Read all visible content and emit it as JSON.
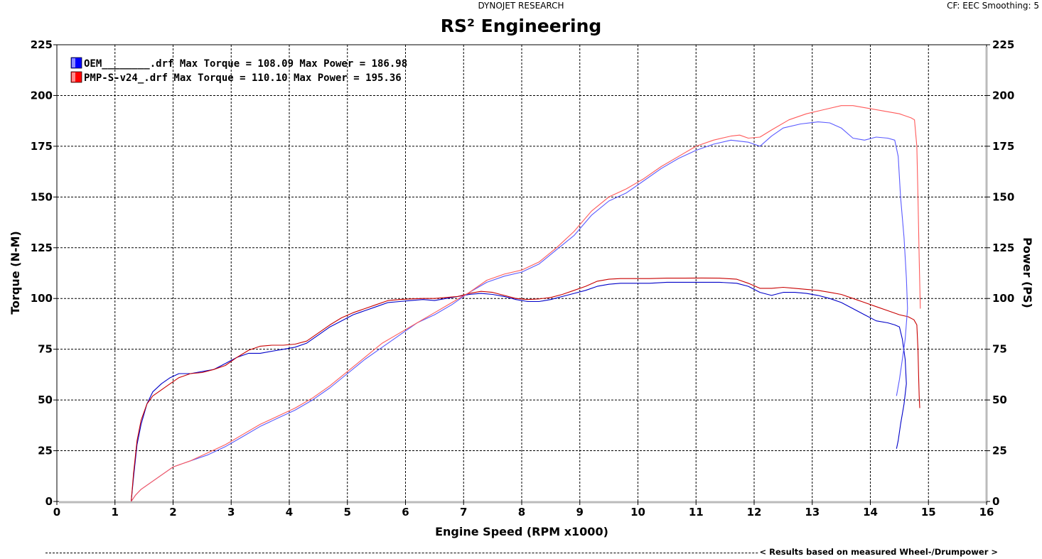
{
  "header": {
    "company": "DYNOJET RESEARCH",
    "settings": "CF: EEC  Smoothing: 5"
  },
  "footer_note": "< Results based on measured Wheel-/Drumpower >",
  "chart_data": {
    "type": "line",
    "title": "RS² Engineering",
    "xlabel": "Engine Speed (RPM x1000)",
    "ylabel_left": "Torque (N-M)",
    "ylabel_right": "Power (PS)",
    "xlim": [
      0,
      16
    ],
    "ylim_left": [
      0,
      225
    ],
    "ylim_right": [
      0,
      225
    ],
    "x_ticks": [
      "0",
      "1",
      "2",
      "3",
      "4",
      "5",
      "6",
      "7",
      "8",
      "9",
      "10",
      "11",
      "12",
      "13",
      "14",
      "15",
      "16"
    ],
    "y_ticks": [
      "0",
      "25",
      "50",
      "75",
      "100",
      "125",
      "150",
      "175",
      "200",
      "225"
    ],
    "grid": true,
    "legend_position": "top-left",
    "legend": [
      {
        "label": "OEM________.drf Max Torque = 108.09 Max Power = 186.98",
        "color": "#0000ff"
      },
      {
        "label": "PMP-S-v24_.drf Max Torque = 110.10 Max Power = 195.36",
        "color": "#ff0000"
      }
    ],
    "series": [
      {
        "name": "OEM________.drf Torque",
        "color": "#0000c8",
        "x": [
          1.28,
          1.32,
          1.38,
          1.45,
          1.55,
          1.65,
          1.8,
          1.95,
          2.1,
          2.3,
          2.5,
          2.7,
          2.9,
          3.1,
          3.3,
          3.5,
          3.7,
          3.9,
          4.1,
          4.3,
          4.5,
          4.7,
          4.9,
          5.1,
          5.3,
          5.5,
          5.7,
          5.9,
          6.1,
          6.3,
          6.5,
          6.7,
          6.9,
          7.1,
          7.3,
          7.5,
          7.7,
          7.9,
          8.1,
          8.3,
          8.5,
          8.7,
          8.9,
          9.1,
          9.3,
          9.5,
          9.7,
          9.9,
          10.2,
          10.5,
          10.8,
          11.1,
          11.4,
          11.7,
          11.9,
          12.1,
          12.3,
          12.5,
          12.7,
          12.9,
          13.1,
          13.3,
          13.5,
          13.7,
          13.9,
          14.1,
          14.3,
          14.42,
          14.5,
          14.55,
          14.6,
          14.62,
          14.58,
          14.52,
          14.48,
          14.45
        ],
        "y": [
          0,
          12,
          28,
          38,
          48,
          54,
          58,
          61,
          63,
          63,
          64,
          65,
          68,
          71,
          73,
          73,
          74,
          75,
          76,
          78,
          82,
          86,
          89,
          92,
          94,
          96,
          98,
          98.5,
          99,
          99.5,
          99,
          100,
          101,
          102,
          102.5,
          102,
          101,
          99.5,
          98.5,
          98.5,
          99.5,
          101,
          102.5,
          104,
          106,
          107,
          107.5,
          107.5,
          107.5,
          108,
          108,
          108,
          108,
          107.5,
          106,
          103,
          101.5,
          103,
          103,
          102.5,
          101.5,
          100,
          98,
          95,
          92,
          89,
          88,
          87,
          86,
          80,
          70,
          58,
          48,
          38,
          30,
          26
        ]
      },
      {
        "name": "PMP-S-v24_.drf Torque",
        "color": "#c80000",
        "x": [
          1.28,
          1.32,
          1.38,
          1.45,
          1.55,
          1.65,
          1.8,
          1.95,
          2.1,
          2.3,
          2.5,
          2.7,
          2.9,
          3.1,
          3.3,
          3.5,
          3.7,
          3.9,
          4.1,
          4.3,
          4.5,
          4.7,
          4.9,
          5.1,
          5.3,
          5.5,
          5.7,
          5.9,
          6.1,
          6.3,
          6.5,
          6.7,
          6.9,
          7.1,
          7.3,
          7.5,
          7.7,
          7.9,
          8.1,
          8.3,
          8.5,
          8.7,
          8.9,
          9.1,
          9.3,
          9.5,
          9.7,
          9.9,
          10.2,
          10.5,
          10.8,
          11.1,
          11.4,
          11.7,
          11.9,
          12.1,
          12.3,
          12.5,
          12.7,
          12.9,
          13.1,
          13.3,
          13.5,
          13.7,
          13.9,
          14.1,
          14.3,
          14.5,
          14.65,
          14.75,
          14.8,
          14.82,
          14.83,
          14.84,
          14.85
        ],
        "y": [
          0,
          14,
          30,
          40,
          48,
          52,
          55,
          58,
          61,
          63,
          63.5,
          65,
          67,
          71,
          74.5,
          76.5,
          77,
          77,
          77.5,
          79,
          83,
          87,
          90.5,
          93,
          95,
          97,
          99,
          99.5,
          99.8,
          100,
          100,
          100.5,
          101,
          102.5,
          103.5,
          103,
          101.5,
          100,
          99.5,
          99.8,
          100.5,
          102,
          104,
          106,
          108.5,
          109.5,
          109.8,
          109.8,
          109.8,
          110,
          110,
          110.1,
          110,
          109.5,
          107.5,
          105,
          105,
          105.5,
          105,
          104.5,
          104,
          103,
          102,
          100,
          98,
          96,
          94,
          92,
          91,
          89.5,
          87,
          75,
          62,
          52,
          46
        ]
      },
      {
        "name": "OEM________.drf Power",
        "color": "#5a5aff",
        "x": [
          1.28,
          1.35,
          1.45,
          1.6,
          1.8,
          2.0,
          2.3,
          2.6,
          2.9,
          3.2,
          3.5,
          3.8,
          4.1,
          4.4,
          4.7,
          5.0,
          5.3,
          5.6,
          5.9,
          6.2,
          6.5,
          6.8,
          7.1,
          7.4,
          7.7,
          8.0,
          8.3,
          8.6,
          8.9,
          9.2,
          9.5,
          9.8,
          10.1,
          10.4,
          10.7,
          11.0,
          11.3,
          11.6,
          11.9,
          12.1,
          12.3,
          12.5,
          12.8,
          13.1,
          13.3,
          13.5,
          13.7,
          13.9,
          14.1,
          14.3,
          14.42,
          14.48,
          14.52,
          14.58,
          14.62,
          14.64,
          14.6,
          14.55,
          14.5,
          14.45
        ],
        "y": [
          0,
          3,
          6,
          9,
          13,
          17,
          20,
          23,
          27,
          32,
          37,
          41,
          45,
          50,
          56,
          63,
          70,
          76,
          82,
          88,
          92,
          97,
          103,
          108,
          111,
          113,
          117,
          124,
          131,
          141,
          148,
          152,
          158,
          164,
          169,
          173,
          176,
          178,
          177,
          175,
          180,
          184,
          186,
          187,
          186.5,
          184,
          179,
          178,
          179.5,
          179,
          178,
          170,
          150,
          130,
          110,
          95,
          80,
          70,
          60,
          52
        ]
      },
      {
        "name": "PMP-S-v24_.drf Power",
        "color": "#ff5a5a",
        "x": [
          1.28,
          1.35,
          1.45,
          1.6,
          1.8,
          2.0,
          2.3,
          2.6,
          2.9,
          3.2,
          3.5,
          3.8,
          4.1,
          4.4,
          4.7,
          5.0,
          5.3,
          5.6,
          5.9,
          6.2,
          6.5,
          6.8,
          7.1,
          7.4,
          7.7,
          8.0,
          8.3,
          8.6,
          8.9,
          9.2,
          9.5,
          9.8,
          10.1,
          10.4,
          10.7,
          11.0,
          11.3,
          11.6,
          11.75,
          11.9,
          12.1,
          12.3,
          12.6,
          12.9,
          13.2,
          13.5,
          13.7,
          13.9,
          14.1,
          14.3,
          14.5,
          14.7,
          14.76,
          14.8,
          14.82,
          14.84,
          14.86
        ],
        "y": [
          0,
          3,
          6,
          9,
          13,
          17,
          20,
          24,
          28,
          33,
          38,
          42,
          46,
          51,
          57,
          64,
          71,
          78,
          83,
          88,
          93,
          98,
          103,
          109,
          112,
          114,
          118,
          125,
          133,
          143,
          150,
          154,
          159,
          165,
          170,
          175,
          178,
          180,
          180.5,
          179,
          179.5,
          183,
          188,
          191,
          193,
          195,
          195,
          194,
          193,
          192,
          191,
          189,
          188,
          175,
          150,
          120,
          95
        ]
      }
    ]
  }
}
